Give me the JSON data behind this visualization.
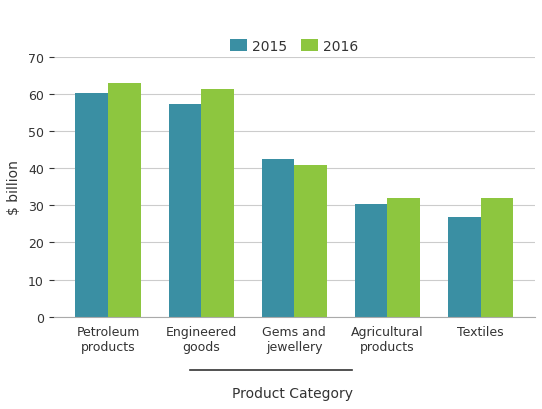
{
  "categories": [
    "Petroleum\nproducts",
    "Engineered\ngoods",
    "Gems and\njewellery",
    "Agricultural\nproducts",
    "Textiles"
  ],
  "values_2015": [
    60.5,
    57.5,
    42.5,
    30.5,
    27
  ],
  "values_2016": [
    63,
    61.5,
    41,
    32,
    32
  ],
  "bar_color_2015": "#3a8fa3",
  "bar_color_2016": "#8dc63f",
  "legend_labels": [
    "2015",
    "2016"
  ],
  "ylabel": "$ billion",
  "xlabel": "Product Category",
  "xlabel_color": "#333333",
  "ylim": [
    0,
    70
  ],
  "yticks": [
    0,
    10,
    20,
    30,
    40,
    50,
    60,
    70
  ],
  "bar_width": 0.35,
  "grid_color": "#cccccc",
  "background_color": "#ffffff",
  "underline_color": "#333333"
}
